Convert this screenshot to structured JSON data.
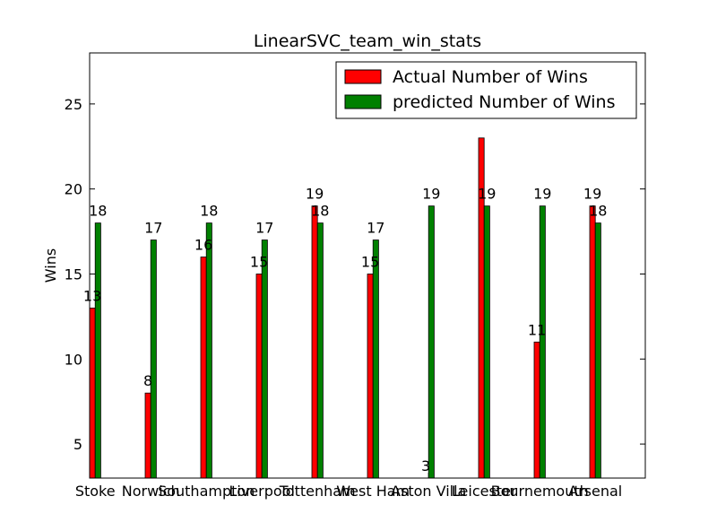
{
  "chart_data": {
    "type": "bar",
    "title": "LinearSVC_team_win_stats",
    "xlabel": "",
    "ylabel": "Wins",
    "ylim": [
      3,
      28
    ],
    "yticks": [
      5,
      10,
      15,
      20,
      25
    ],
    "categories": [
      "Stoke",
      "Norwich",
      "Southampton",
      "Liverpool",
      "Tottenham",
      "West Ham",
      "Aston Villa",
      "Leicester",
      "Bournemouth",
      "Arsenal"
    ],
    "series": [
      {
        "name": "Actual Number of Wins",
        "color": "#ff0000",
        "values": [
          13,
          8,
          16,
          15,
          19,
          15,
          3,
          23,
          11,
          19
        ],
        "labels": [
          "13",
          "8",
          "16",
          "15",
          "19",
          "15",
          "3",
          "",
          "11",
          "19"
        ]
      },
      {
        "name": "predicted Number of Wins",
        "color": "#008000",
        "values": [
          18,
          17,
          18,
          17,
          18,
          17,
          19,
          19,
          19,
          18
        ],
        "labels": [
          "18",
          "17",
          "18",
          "17",
          "18",
          "17",
          "19",
          "19",
          "19",
          "18"
        ]
      }
    ],
    "legend_position": "top-right",
    "grid": false
  }
}
